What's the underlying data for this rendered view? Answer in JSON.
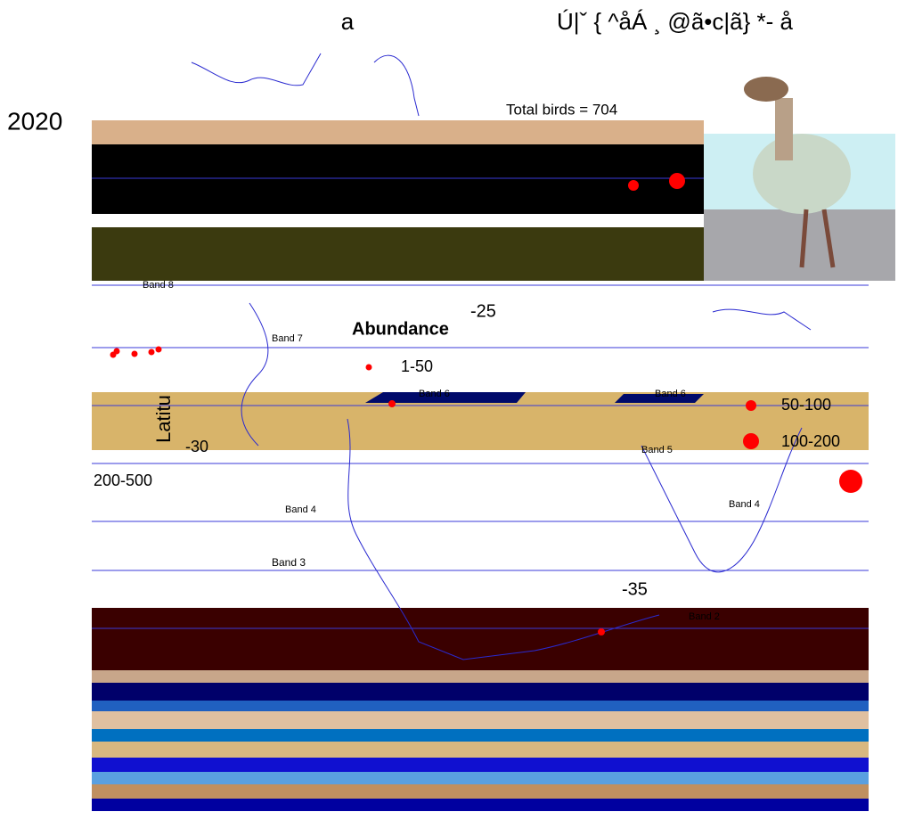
{
  "panel_label": "a",
  "title": "Ú|ˇ { ^åÁ ¸ @ã•c|ã} *- å",
  "year": "2020",
  "total": "Total birds = 704",
  "y_axis_label": "Latitu",
  "y_ticks": [
    "-25",
    "-30",
    "-35"
  ],
  "legend": {
    "title": "Abundance",
    "items": [
      "1-50",
      "50-100",
      "100-200",
      "200-500"
    ]
  },
  "bands": [
    "Band 8",
    "Band 7",
    "Band 6",
    "Band 6",
    "Band 5",
    "Band 4",
    "Band 4",
    "Band 3",
    "Band 2"
  ]
}
